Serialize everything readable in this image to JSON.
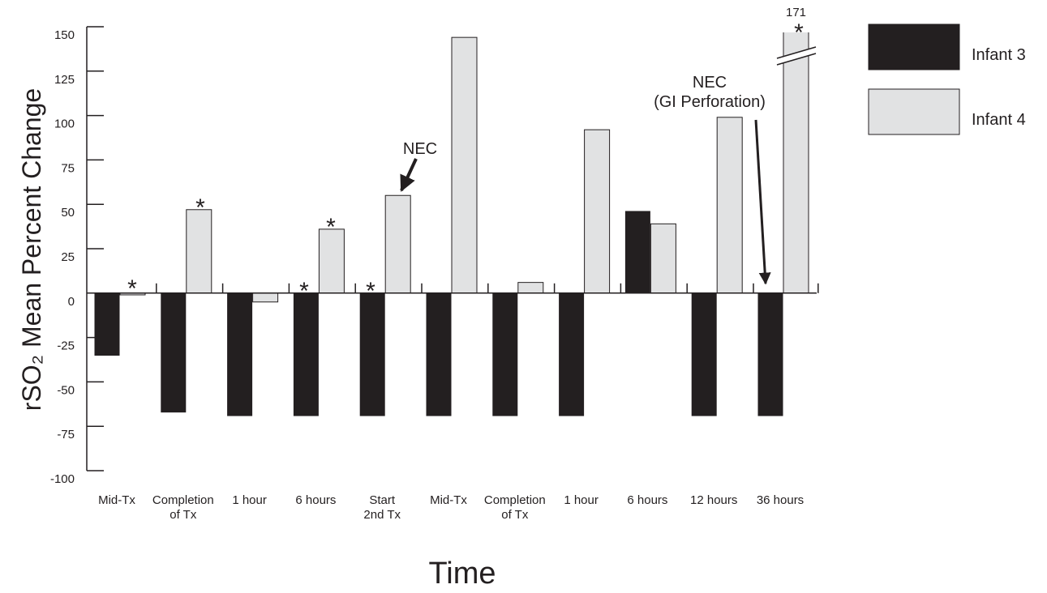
{
  "chart_data": {
    "type": "bar",
    "ylabel": "rSO₂ Mean Percent Change",
    "xlabel": "Time",
    "categories": [
      "Mid-Tx",
      "Completion\nof Tx",
      "1 hour",
      "6 hours",
      "Start\n2nd Tx",
      "Mid-Tx",
      "Completion\nof Tx",
      "1 hour",
      "6 hours",
      "12 hours",
      "36 hours"
    ],
    "series": [
      {
        "name": "Infant 3",
        "color": "#231f20",
        "values": [
          -35,
          -67,
          -69,
          -69,
          -69,
          -69,
          -69,
          -69,
          46,
          -69,
          -69
        ]
      },
      {
        "name": "Infant 4",
        "color": "#e1e2e3",
        "values": [
          -1,
          47,
          -5,
          36,
          55,
          144,
          6,
          92,
          39,
          99,
          171
        ],
        "value_labels": [
          null,
          null,
          null,
          null,
          null,
          null,
          null,
          null,
          null,
          null,
          "171"
        ]
      }
    ],
    "ylim": [
      -100,
      150
    ],
    "yticks": [
      -100,
      -75,
      -50,
      -25,
      0,
      25,
      50,
      75,
      100,
      125,
      150
    ],
    "annotations": [
      "*",
      "*",
      "*",
      "*",
      "*",
      "*",
      "NEC",
      "NEC\n(GI Perforation)"
    ],
    "legend": "right"
  }
}
